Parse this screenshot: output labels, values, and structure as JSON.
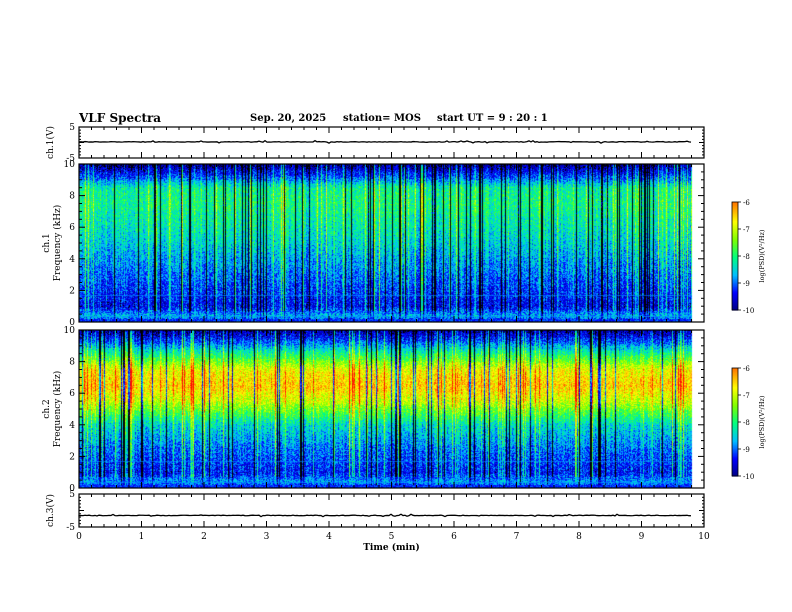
{
  "header": {
    "title": "VLF Spectra",
    "date": "Sep. 20, 2025",
    "station": "station= MOS",
    "start": "start  UT  =   9 : 20 : 1"
  },
  "colors": {
    "colormap": [
      "#000080",
      "#0000ff",
      "#00bfff",
      "#00ff80",
      "#80ff00",
      "#ffff00",
      "#ff8000",
      "#ff0000",
      "#ffffff"
    ]
  },
  "chart_data": [
    {
      "type": "line",
      "panel": "ch1-voltage",
      "ylabel": "ch.1(V)",
      "ylim": [
        -5,
        5
      ],
      "yticks": [
        "5",
        "-5"
      ],
      "xlim": [
        0,
        10
      ],
      "series": [
        {
          "values_description_free": true,
          "x": [
            0,
            9.8
          ],
          "y": [
            0.2,
            0.2
          ]
        }
      ]
    },
    {
      "type": "heatmap",
      "panel": "ch1-spectrogram",
      "ylabel": "ch.1\nFrequency (kHz)",
      "ylim": [
        0,
        10
      ],
      "yticks": [
        "0",
        "2",
        "4",
        "6",
        "8",
        "10"
      ],
      "xlim": [
        0,
        10
      ],
      "data_end_min": 9.8,
      "colorbar": {
        "label": "log(PSD)(V²/Hz)",
        "range": [
          -10,
          -6
        ],
        "ticks": [
          "-6",
          "-7",
          "-8",
          "-9",
          "-10"
        ]
      },
      "band_profile_kHz": [
        [
          0,
          -9.6
        ],
        [
          0.4,
          -8.8
        ],
        [
          1,
          -9.5
        ],
        [
          2,
          -9.3
        ],
        [
          4,
          -8.9
        ],
        [
          6,
          -8.5
        ],
        [
          7.5,
          -8.3
        ],
        [
          8.5,
          -8.4
        ],
        [
          9.3,
          -9.3
        ],
        [
          10,
          -9.9
        ]
      ]
    },
    {
      "type": "heatmap",
      "panel": "ch2-spectrogram",
      "ylabel": "ch.2\nFrequency (kHz)",
      "ylim": [
        0,
        10
      ],
      "yticks": [
        "0",
        "2",
        "4",
        "6",
        "8",
        "10"
      ],
      "xlim": [
        0,
        10
      ],
      "data_end_min": 9.8,
      "colorbar": {
        "label": "log(PSD)(V²/Hz)",
        "range": [
          -10,
          -6
        ],
        "ticks": [
          "-6",
          "-7",
          "-8",
          "-9",
          "-10"
        ]
      },
      "band_profile_kHz": [
        [
          0,
          -9.6
        ],
        [
          0.4,
          -8.9
        ],
        [
          1,
          -9.4
        ],
        [
          2,
          -9.2
        ],
        [
          4,
          -8.6
        ],
        [
          5.5,
          -7.4
        ],
        [
          6.5,
          -6.9
        ],
        [
          7.5,
          -7.2
        ],
        [
          8.5,
          -8.3
        ],
        [
          9.3,
          -9.2
        ],
        [
          10,
          -9.8
        ]
      ]
    },
    {
      "type": "line",
      "panel": "ch3-voltage",
      "ylabel": "ch.3(V)",
      "ylim": [
        -5,
        5
      ],
      "yticks": [
        "5",
        "-5"
      ],
      "xlim": [
        0,
        10
      ],
      "xlabel": "Time  (min)",
      "xticks": [
        "0",
        "1",
        "2",
        "3",
        "4",
        "5",
        "6",
        "7",
        "8",
        "9",
        "10"
      ],
      "series": [
        {
          "x": [
            0,
            9.8
          ],
          "y": [
            -1.5,
            -1.5
          ]
        }
      ]
    }
  ]
}
